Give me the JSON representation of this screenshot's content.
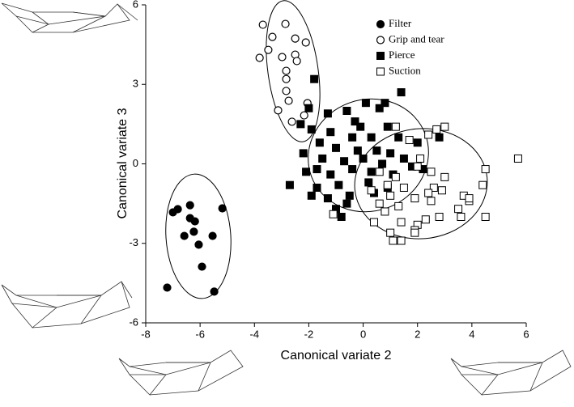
{
  "chart_data": {
    "type": "scatter",
    "x_label": "Canonical variate 2",
    "y_label": "Canonical variate 3",
    "xlim": [
      -8,
      6
    ],
    "ylim": [
      -6,
      6
    ],
    "xticks": [
      -8,
      -6,
      -4,
      -2,
      0,
      2,
      4,
      6
    ],
    "yticks": [
      -6,
      -3,
      0,
      3,
      6
    ],
    "legend": "top right",
    "series": [
      {
        "name": "Filter",
        "color": "#000000",
        "marker": "circle",
        "filled": true,
        "x": [
          -7.0,
          -6.82,
          -6.37,
          -6.37,
          -6.19,
          -6.58,
          -6.23,
          -6.05,
          -5.54,
          -5.18,
          -5.93,
          -5.48,
          -7.21
        ],
        "values": [
          -1.83,
          -1.71,
          -1.56,
          -2.05,
          -2.17,
          -2.72,
          -2.56,
          -3.05,
          -2.72,
          -1.68,
          -3.88,
          -4.82,
          -4.67
        ]
      },
      {
        "name": "Grip and tear",
        "color": "#000000",
        "marker": "circle",
        "filled": false,
        "x": [
          -3.69,
          -3.34,
          -2.86,
          -2.5,
          -2.11,
          -2.5,
          -2.44,
          -2.98,
          -3.81,
          -3.49,
          -2.83,
          -2.83,
          -2.74,
          -3.13,
          -2.62,
          -2.17,
          -2.05,
          -2.83
        ],
        "values": [
          5.25,
          4.79,
          5.28,
          4.73,
          4.58,
          4.12,
          3.88,
          4.03,
          4.0,
          4.3,
          3.2,
          2.75,
          2.38,
          2.02,
          1.59,
          1.83,
          2.29,
          3.51
        ]
      },
      {
        "name": "Pierce",
        "color": "#000000",
        "marker": "square",
        "filled": true,
        "x": [
          -1.8,
          1.4,
          -2.0,
          -1.3,
          -0.6,
          0.1,
          0.6,
          -0.3,
          0.9,
          -1.2,
          -0.4,
          0.3,
          1.3,
          -1.9,
          -1.6,
          -1.0,
          -0.2,
          0.5,
          1.0,
          -2.2,
          -1.5,
          -0.7,
          0.0,
          0.7,
          1.5,
          2.8,
          -2.1,
          -1.2,
          -0.4,
          0.3,
          1.1,
          1.8,
          -2.7,
          -1.7,
          -0.9,
          0.2,
          0.9,
          -1.3,
          -0.5,
          -1.0,
          -1.9,
          -0.8,
          -0.6,
          0.4,
          -2.3,
          2.0,
          -0.1,
          0.8,
          -1.7,
          2.2
        ],
        "values": [
          3.2,
          2.7,
          2.1,
          1.9,
          2.0,
          2.3,
          2.1,
          1.6,
          1.4,
          1.2,
          1.0,
          1.0,
          1.0,
          1.3,
          0.8,
          0.6,
          0.5,
          0.5,
          0.4,
          0.4,
          0.2,
          0.1,
          0.2,
          0.0,
          0.2,
          1.0,
          -0.3,
          -0.4,
          -0.2,
          -0.3,
          -0.4,
          -0.1,
          -0.8,
          -0.9,
          -0.8,
          -0.7,
          -0.9,
          -1.3,
          -1.2,
          -1.7,
          -1.2,
          -2.0,
          -1.5,
          -1.1,
          1.5,
          0.8,
          1.4,
          2.3,
          -0.2,
          -0.2
        ]
      },
      {
        "name": "Suction",
        "color": "#000000",
        "marker": "square",
        "filled": false,
        "x": [
          5.7,
          3.0,
          2.7,
          2.4,
          1.7,
          1.2,
          4.5,
          2.0,
          1.2,
          0.6,
          2.5,
          3.0,
          4.4,
          2.6,
          3.7,
          2.9,
          1.5,
          1.0,
          0.3,
          2.4,
          3.9,
          3.5,
          2.5,
          1.9,
          1.3,
          0.8,
          4.5,
          3.6,
          2.3,
          2.0,
          1.4,
          -1.1,
          0.4,
          1.9,
          1.0,
          1.9,
          1.4,
          1.1,
          0.9,
          2.8,
          3.9,
          2.1,
          0.6
        ],
        "values": [
          0.2,
          1.4,
          1.3,
          1.1,
          0.9,
          1.4,
          -0.2,
          -0.1,
          -0.5,
          -0.3,
          -0.3,
          -0.5,
          -0.8,
          -0.9,
          -1.2,
          -1.0,
          -0.9,
          -1.2,
          -1.0,
          -1.1,
          -1.4,
          -1.7,
          -1.4,
          -1.3,
          -1.6,
          -1.8,
          -2.0,
          -2.0,
          -2.1,
          -2.3,
          -2.2,
          -1.9,
          -2.2,
          -2.5,
          -2.6,
          -2.6,
          -2.9,
          -2.9,
          -0.8,
          -2.0,
          -1.3,
          0.2,
          -1.5
        ]
      }
    ]
  }
}
